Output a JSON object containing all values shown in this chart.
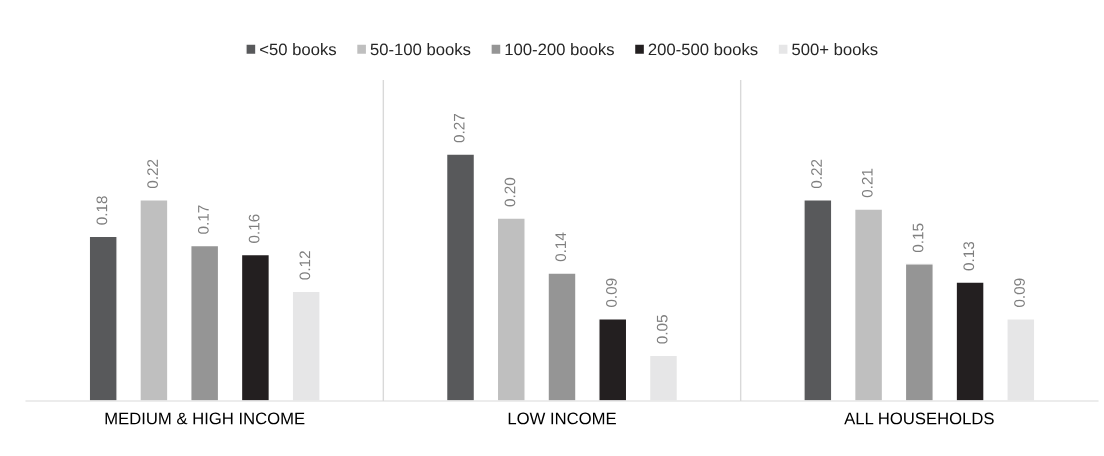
{
  "chart_data": {
    "type": "bar",
    "categories": [
      "MEDIUM & HIGH INCOME",
      "LOW INCOME",
      "ALL HOUSEHOLDS"
    ],
    "series": [
      {
        "name": "<50 books",
        "color": "#58595b",
        "values": [
          0.18,
          0.27,
          0.22
        ],
        "value_labels": [
          "0.18",
          "0.27",
          "0.22"
        ]
      },
      {
        "name": "50-100 books",
        "color": "#bfbfbf",
        "values": [
          0.22,
          0.2,
          0.21
        ],
        "value_labels": [
          "0.22",
          "0.20",
          "0.21"
        ]
      },
      {
        "name": "100-200 books",
        "color": "#959595",
        "values": [
          0.17,
          0.14,
          0.15
        ],
        "value_labels": [
          "0.17",
          "0.14",
          "0.15"
        ]
      },
      {
        "name": "200-500 books",
        "color": "#231f20",
        "values": [
          0.16,
          0.09,
          0.13
        ],
        "value_labels": [
          "0.16",
          "0.09",
          "0.13"
        ]
      },
      {
        "name": "500+ books",
        "color": "#e6e6e7",
        "values": [
          0.12,
          0.05,
          0.09
        ],
        "value_labels": [
          "0.12",
          "0.05",
          "0.09"
        ]
      }
    ],
    "grid": "x",
    "legend": "top"
  }
}
